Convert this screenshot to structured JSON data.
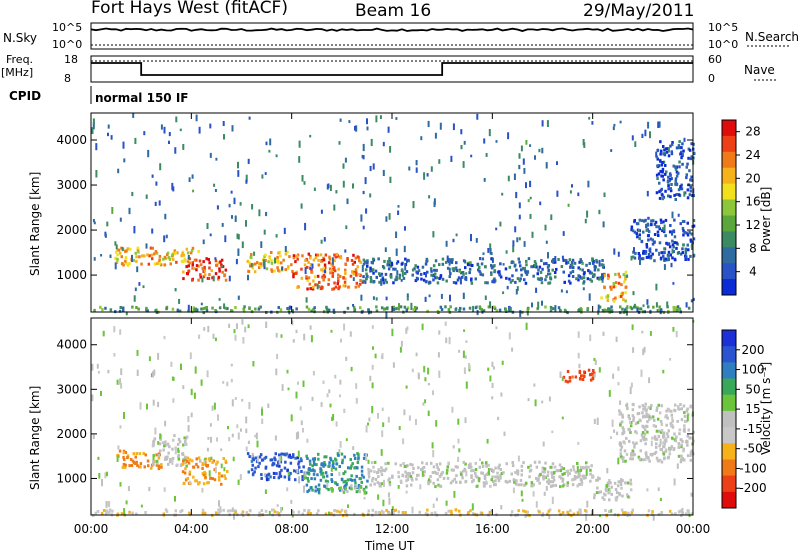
{
  "header": {
    "station": "Fort Hays West (fitACF)",
    "beam": "Beam 16",
    "date": "29/May/2011"
  },
  "top_panels": {
    "nsky_label": "N.Sky",
    "nsearch_label": "N.Search",
    "freq_label_line1": "Freq.",
    "freq_label_line2": "[MHz]",
    "nave_label": "Nave",
    "cpid_label": "CPID",
    "cpid_value": "normal 150 IF",
    "noise_ticks": [
      "10^5",
      "10^0"
    ],
    "freq_ticks": [
      "18",
      "8"
    ],
    "nave_ticks": [
      "60",
      "0"
    ]
  },
  "colors": {
    "power": [
      "#0b2bd6",
      "#2a52c7",
      "#2f6aa0",
      "#3b8a62",
      "#5aa83c",
      "#8cc63b",
      "#f2e01c",
      "#f5b21a",
      "#f07a18",
      "#ee4016",
      "#e00c0c"
    ],
    "velocity": [
      "#1d2fd6",
      "#2b55d0",
      "#2f7fc0",
      "#3aa85a",
      "#6cc43c",
      "#c0c0c0",
      "#c8c8c8",
      "#f5b21a",
      "#f07a18",
      "#ee4016",
      "#e00c0c"
    ]
  },
  "chart_data": [
    {
      "type": "heatmap",
      "name": "power",
      "xlabel": "Time UT",
      "ylabel": "Slant Range [km]",
      "x_ticks": [
        "00:00",
        "04:00",
        "08:00",
        "12:00",
        "16:00",
        "20:00",
        "00:00"
      ],
      "xlim": [
        0,
        24
      ],
      "ylim": [
        180,
        4600
      ],
      "y_ticks": [
        1000,
        2000,
        3000,
        4000
      ],
      "colorbar": {
        "label": "Power [dB]",
        "ticks": [
          "4",
          "8",
          "12",
          "16",
          "20",
          "24",
          "28"
        ],
        "range": [
          0,
          30
        ]
      },
      "regions": [
        {
          "t0": 0.9,
          "t1": 4.3,
          "r0": 1250,
          "r1": 1650,
          "v": 20
        },
        {
          "t0": 3.6,
          "t1": 5.4,
          "r0": 900,
          "r1": 1400,
          "v": 26
        },
        {
          "t0": 6.2,
          "t1": 8.0,
          "r0": 1100,
          "r1": 1550,
          "v": 20
        },
        {
          "t0": 8.0,
          "t1": 10.8,
          "r0": 700,
          "r1": 1500,
          "v": 24
        },
        {
          "t0": 10.8,
          "t1": 20.5,
          "r0": 850,
          "r1": 1400,
          "v": 6
        },
        {
          "t0": 20.3,
          "t1": 21.3,
          "r0": 450,
          "r1": 1100,
          "v": 20
        },
        {
          "t0": 0.0,
          "t1": 24.0,
          "r0": 200,
          "r1": 330,
          "v": 10
        },
        {
          "t0": 21.5,
          "t1": 24.0,
          "r0": 1350,
          "r1": 2300,
          "v": 4
        },
        {
          "t0": 22.5,
          "t1": 24.0,
          "r0": 2700,
          "r1": 4000,
          "v": 4
        }
      ]
    },
    {
      "type": "heatmap",
      "name": "velocity",
      "xlabel": "Time UT",
      "ylabel": "Slant Range [km]",
      "x_ticks": [
        "00:00",
        "04:00",
        "08:00",
        "12:00",
        "16:00",
        "20:00",
        "00:00"
      ],
      "xlim": [
        0,
        24
      ],
      "ylim": [
        180,
        4600
      ],
      "y_ticks": [
        1000,
        2000,
        3000,
        4000
      ],
      "colorbar": {
        "label": "Velocity [m s⁻¹]",
        "ticks": [
          "200",
          "100",
          "50",
          "15",
          "-15",
          "-50",
          "-100",
          "-200"
        ],
        "range": [
          -250,
          250
        ]
      },
      "regions": [
        {
          "t0": 0.9,
          "t1": 2.8,
          "r0": 1250,
          "r1": 1650,
          "v": -120
        },
        {
          "t0": 2.4,
          "t1": 3.8,
          "r0": 1300,
          "r1": 2000,
          "v": 0
        },
        {
          "t0": 3.6,
          "t1": 5.4,
          "r0": 900,
          "r1": 1500,
          "v": -110
        },
        {
          "t0": 6.2,
          "t1": 8.5,
          "r0": 1000,
          "r1": 1600,
          "v": 180
        },
        {
          "t0": 8.5,
          "t1": 11.0,
          "r0": 700,
          "r1": 1600,
          "v": 120
        },
        {
          "t0": 9.5,
          "t1": 11.0,
          "r0": 700,
          "r1": 900,
          "v": 40
        },
        {
          "t0": 11.0,
          "t1": 20.0,
          "r0": 850,
          "r1": 1400,
          "v": 0
        },
        {
          "t0": 20.0,
          "t1": 21.5,
          "r0": 550,
          "r1": 1050,
          "v": 0
        },
        {
          "t0": 0.0,
          "t1": 24.0,
          "r0": 200,
          "r1": 330,
          "v": -60
        },
        {
          "t0": 21.0,
          "t1": 24.0,
          "r0": 1400,
          "r1": 2700,
          "v": 0
        },
        {
          "t0": 18.8,
          "t1": 20.2,
          "r0": 3200,
          "r1": 3500,
          "v": -180
        }
      ]
    }
  ]
}
